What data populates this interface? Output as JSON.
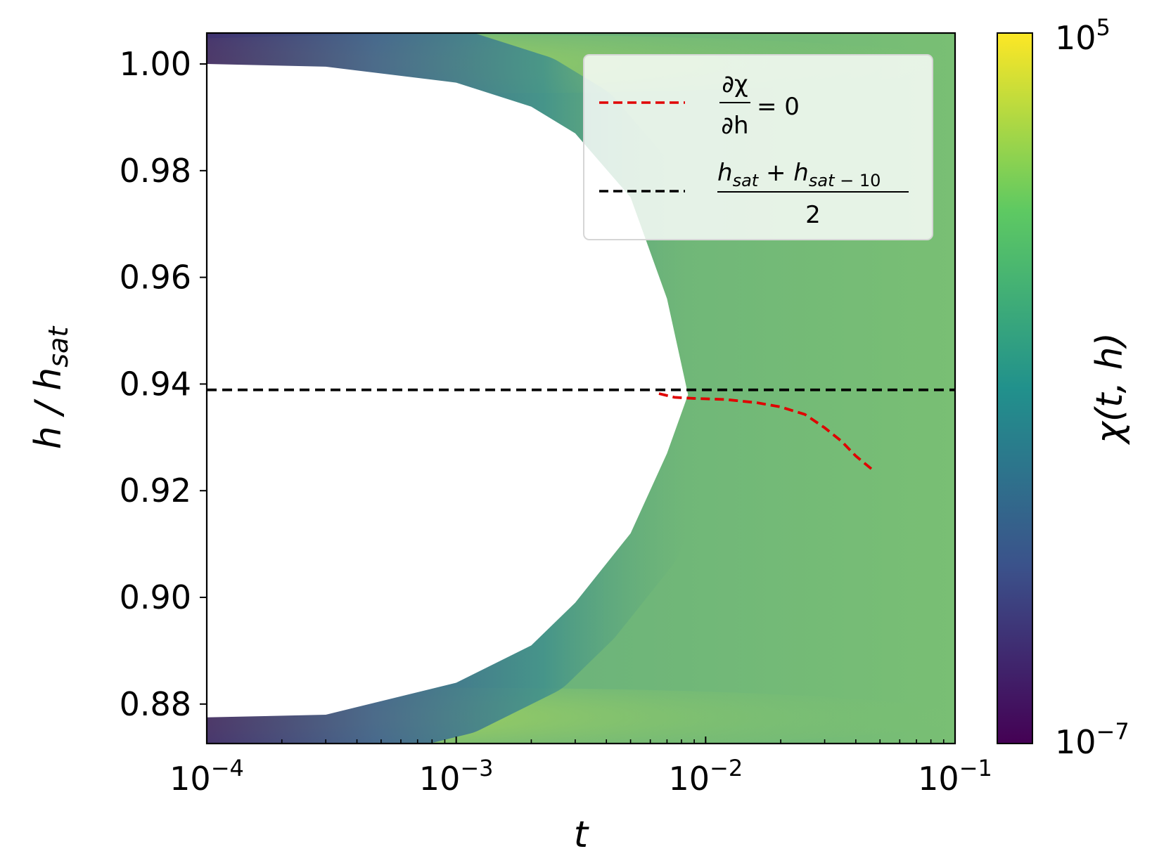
{
  "chart_data": {
    "type": "heatmap",
    "xlabel": "t",
    "ylabel": "h / h_sat",
    "x_scale": "log",
    "xlim": [
      0.0001,
      0.1
    ],
    "ylim": [
      0.8726,
      1.0058
    ],
    "x_ticks": [
      {
        "value": 0.0001,
        "base": "10",
        "exp": "−4"
      },
      {
        "value": 0.001,
        "base": "10",
        "exp": "−3"
      },
      {
        "value": 0.01,
        "base": "10",
        "exp": "−2"
      },
      {
        "value": 0.1,
        "base": "10",
        "exp": "−1"
      }
    ],
    "y_ticks": [
      {
        "value": 0.88,
        "label": "0.88"
      },
      {
        "value": 0.9,
        "label": "0.90"
      },
      {
        "value": 0.92,
        "label": "0.92"
      },
      {
        "value": 0.94,
        "label": "0.94"
      },
      {
        "value": 0.96,
        "label": "0.96"
      },
      {
        "value": 0.98,
        "label": "0.98"
      },
      {
        "value": 1.0,
        "label": "1.00"
      }
    ],
    "colorbar": {
      "label": "χ(t, h)",
      "scale": "log",
      "min": {
        "value": 1e-07,
        "base": "10",
        "exp": "−7"
      },
      "max": {
        "value": 100000.0,
        "base": "10",
        "exp": "5"
      },
      "colormap": [
        "#440154",
        "#3b528b",
        "#21918c",
        "#5ec962",
        "#fde725"
      ]
    },
    "field": {
      "description": "contour fill; blank region (chi below colorbar minimum) bounded by the curves below",
      "upper_peak_h": 1.0,
      "lower_peak_h": 0.8775,
      "upper_boundary": [
        [
          0.0001,
          1.0
        ],
        [
          0.0003,
          0.9995
        ],
        [
          0.001,
          0.9965
        ],
        [
          0.002,
          0.992
        ],
        [
          0.003,
          0.987
        ],
        [
          0.005,
          0.975
        ],
        [
          0.007,
          0.956
        ],
        [
          0.0085,
          0.938
        ]
      ],
      "lower_boundary": [
        [
          0.0001,
          0.8775
        ],
        [
          0.0003,
          0.878
        ],
        [
          0.001,
          0.884
        ],
        [
          0.002,
          0.891
        ],
        [
          0.003,
          0.899
        ],
        [
          0.005,
          0.912
        ],
        [
          0.007,
          0.927
        ],
        [
          0.0085,
          0.938
        ]
      ]
    },
    "series": [
      {
        "name": "∂χ/∂h = 0",
        "style": "dashed",
        "color": "#e00000",
        "points": [
          [
            0.0065,
            0.9382
          ],
          [
            0.0075,
            0.9375
          ],
          [
            0.009,
            0.9373
          ],
          [
            0.012,
            0.9371
          ],
          [
            0.016,
            0.9365
          ],
          [
            0.02,
            0.9357
          ],
          [
            0.025,
            0.9343
          ],
          [
            0.03,
            0.9318
          ],
          [
            0.035,
            0.9293
          ],
          [
            0.04,
            0.9265
          ],
          [
            0.047,
            0.9238
          ]
        ]
      },
      {
        "name": "(h_sat + h_sat−10) / 2",
        "style": "dashed",
        "color": "#000000",
        "y": 0.9389
      }
    ],
    "legend": {
      "placement": "upper right",
      "entries": [
        {
          "line_color": "#e00000",
          "expr": "∂χ/∂h = 0",
          "numerator": "∂χ",
          "denominator": "∂h",
          "rhs": "= 0"
        },
        {
          "line_color": "#000000",
          "expr": "(h_sat + h_sat−10) / 2",
          "denominator": "2"
        }
      ]
    }
  }
}
